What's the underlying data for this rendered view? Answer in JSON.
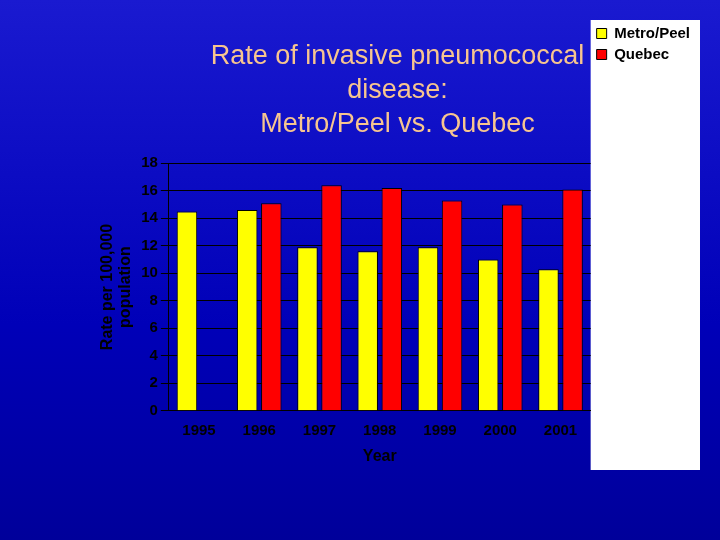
{
  "chart_data": {
    "type": "bar",
    "title": [
      "Rate of invasive pneumococcal",
      "disease:",
      "Metro/Peel vs. Quebec"
    ],
    "xlabel": "Year",
    "ylabel": [
      "Rate per 100,000",
      "population"
    ],
    "categories": [
      "1995",
      "1996",
      "1997",
      "1998",
      "1999",
      "2000",
      "2001"
    ],
    "series": [
      {
        "name": "Metro/Peel",
        "color": "#ffff00",
        "values": [
          14.5,
          14.6,
          11.9,
          11.6,
          11.9,
          11.0,
          10.3
        ]
      },
      {
        "name": "Quebec",
        "color": "#ff0000",
        "values": [
          null,
          15.1,
          16.4,
          16.2,
          15.3,
          15.0,
          16.1
        ]
      }
    ],
    "ylim": [
      0,
      18
    ],
    "yticks": [
      0,
      2,
      4,
      6,
      8,
      10,
      12,
      14,
      16,
      18
    ],
    "grid": true,
    "legend": "top right"
  }
}
